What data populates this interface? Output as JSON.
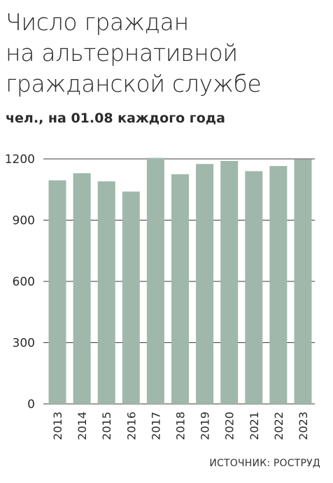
{
  "title": "Число граждан\nна альтернативной\nгражданской службе",
  "subtitle": "чел., на 01.08 каждого года",
  "source": "ИСТОЧНИК: РОСТРУД",
  "colors": {
    "bar": "#9fb8ab",
    "grid": "#3a3a3a",
    "text": "#2b2b2b"
  },
  "chart_data": {
    "type": "bar",
    "title": "Число граждан на альтернативной гражданской службе",
    "subtitle": "чел., на 01.08 каждого года",
    "categories": [
      "2013",
      "2014",
      "2015",
      "2016",
      "2017",
      "2018",
      "2019",
      "2020",
      "2021",
      "2022",
      "2023"
    ],
    "values": [
      1095,
      1130,
      1090,
      1040,
      1205,
      1125,
      1175,
      1190,
      1140,
      1165,
      1197
    ],
    "ylim": [
      0,
      1200
    ],
    "yticks": [
      0,
      300,
      600,
      900,
      1200
    ],
    "grid": true
  }
}
